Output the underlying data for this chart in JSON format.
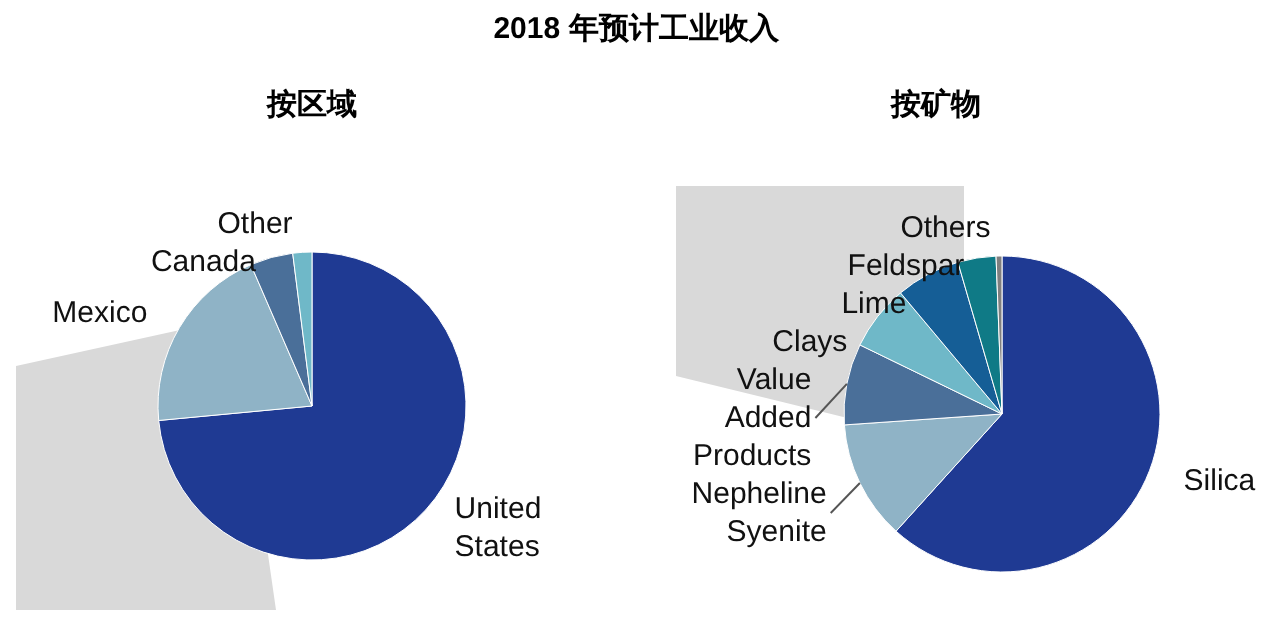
{
  "chart_data": [
    {
      "type": "pie",
      "title": "2018 年预计工业收入",
      "subtitle": "按区域",
      "categories": [
        "United States",
        "Mexico",
        "Canada",
        "Other"
      ],
      "values": [
        73.5,
        20,
        4.5,
        2
      ],
      "colors": [
        "#1f3a93",
        "#8fb3c6",
        "#4a6f99",
        "#6fb8c8"
      ]
    },
    {
      "type": "pie",
      "subtitle": "按矿物",
      "categories": [
        "Silica",
        "Nepheline Syenite",
        "Value Added Products",
        "Clays",
        "Lime",
        "Feldspar",
        "Others"
      ],
      "values": [
        61.7,
        12.2,
        8.3,
        6.7,
        6.6,
        3.9,
        0.6
      ],
      "colors": [
        "#1f3a93",
        "#8fb3c6",
        "#4a6f99",
        "#6fb8c8",
        "#155e96",
        "#0f7a86",
        "#7f7f7f"
      ]
    }
  ]
}
